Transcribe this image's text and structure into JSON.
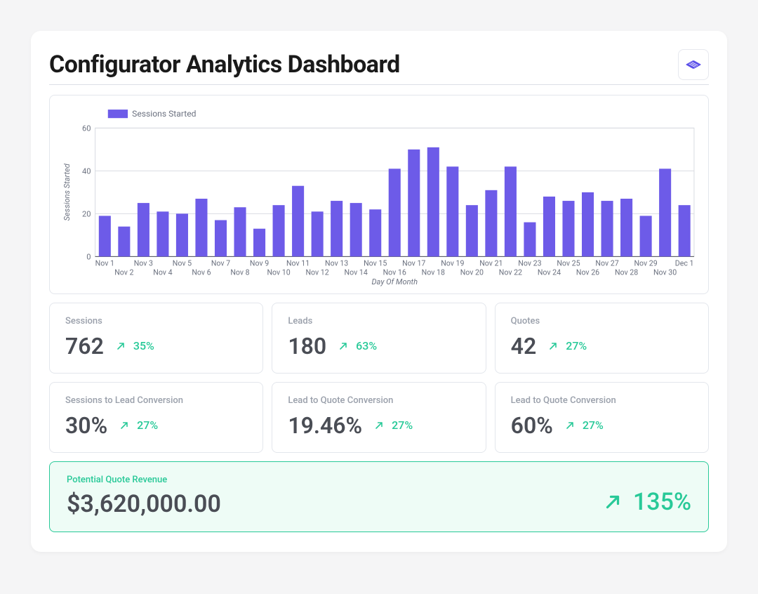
{
  "header": {
    "title": "Configurator Analytics Dashboard"
  },
  "colors": {
    "bar": "#6d5be8",
    "grid": "#d9dce2",
    "axis": "#6c7280",
    "positive": "#28c998",
    "card_border": "#e3e6ec",
    "text_muted": "#9aa0ab",
    "text_value": "#4a4d55",
    "panel_bg": "#ffffff",
    "revenue_bg": "#eefcf6",
    "revenue_border": "#28c998",
    "page_bg": "#f5f5f6",
    "logo": "#5b4fe9"
  },
  "chart": {
    "type": "bar",
    "legend_label": "Sessions Started",
    "y_axis_label": "Sessions Started",
    "x_axis_label": "Day Of Month",
    "ylim": [
      0,
      60
    ],
    "ytick_step": 20,
    "bar_width": 0.62,
    "label_fontsize": 11,
    "axis_font_style": "italic",
    "grid_on": true,
    "categories": [
      "Nov 1",
      "Nov 2",
      "Nov 3",
      "Nov 4",
      "Nov 5",
      "Nov 6",
      "Nov 7",
      "Nov 8",
      "Nov 9",
      "Nov 10",
      "Nov 11",
      "Nov 12",
      "Nov 13",
      "Nov 14",
      "Nov 15",
      "Nov 16",
      "Nov 17",
      "Nov 18",
      "Nov 19",
      "Nov 20",
      "Nov 21",
      "Nov 22",
      "Nov 23",
      "Nov 24",
      "Nov 25",
      "Nov 26",
      "Nov 27",
      "Nov 28",
      "Nov 29",
      "Nov 30",
      "Dec 1"
    ],
    "values": [
      19,
      14,
      25,
      21,
      20,
      27,
      17,
      23,
      13,
      24,
      33,
      21,
      26,
      25,
      22,
      41,
      50,
      51,
      42,
      24,
      31,
      42,
      16,
      28,
      26,
      30,
      26,
      27,
      19,
      41,
      24
    ]
  },
  "kpis": [
    {
      "label": "Sessions",
      "value": "762",
      "delta": "35%"
    },
    {
      "label": "Leads",
      "value": "180",
      "delta": "63%"
    },
    {
      "label": "Quotes",
      "value": "42",
      "delta": "27%"
    },
    {
      "label": "Sessions to Lead Conversion",
      "value": "30%",
      "delta": "27%"
    },
    {
      "label": "Lead to Quote Conversion",
      "value": "19.46%",
      "delta": "27%"
    },
    {
      "label": "Lead to Quote Conversion",
      "value": "60%",
      "delta": "27%"
    }
  ],
  "revenue": {
    "label": "Potential Quote Revenue",
    "value": "$3,620,000.00",
    "delta": "135%"
  }
}
